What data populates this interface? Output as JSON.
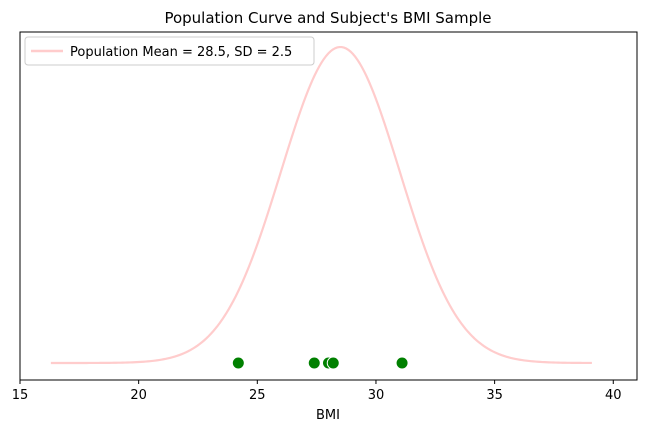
{
  "chart_data": {
    "type": "line",
    "title": "Population Curve and Subject's BMI Sample",
    "xlabel": "BMI",
    "ylabel": "",
    "xlim": [
      15,
      41
    ],
    "x_ticks": [
      15,
      20,
      25,
      30,
      35,
      40
    ],
    "y_ticks_visible": false,
    "grid": false,
    "legend": {
      "placement": "top-left",
      "entries": [
        "Population Mean = 28.5, SD = 2.5"
      ]
    },
    "series": [
      {
        "name": "Population Mean = 28.5, SD = 2.5",
        "kind": "normal-curve",
        "mean": 28.5,
        "sd": 2.5,
        "x_range": [
          16.3,
          39.1
        ],
        "color": "#ffcccc"
      }
    ],
    "sample_points": {
      "values": [
        24.2,
        27.4,
        28.0,
        28.2,
        31.1
      ],
      "color": "#008000"
    }
  }
}
